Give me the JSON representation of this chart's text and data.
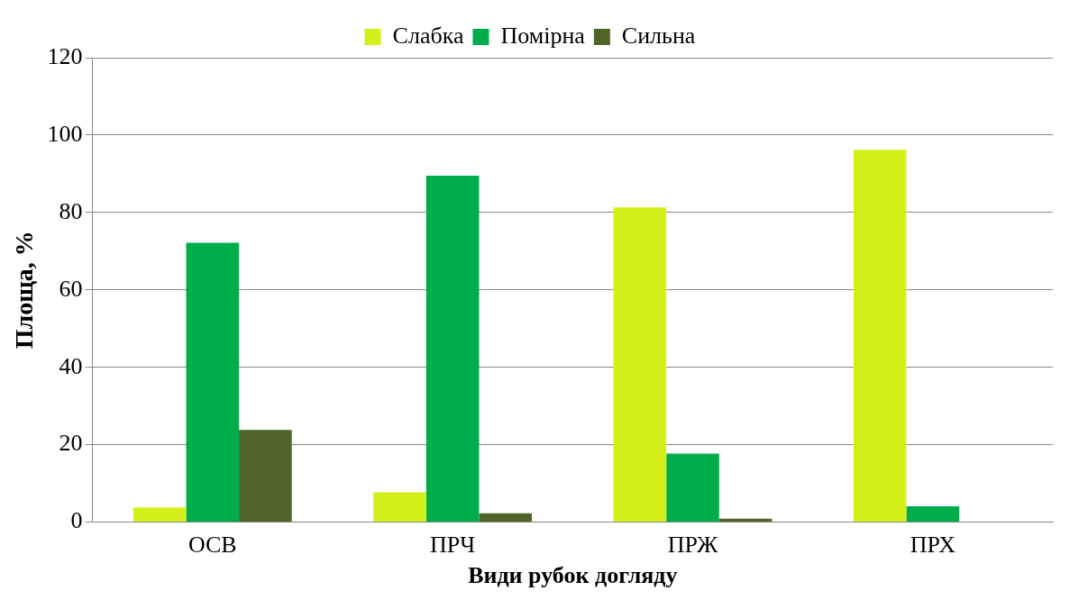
{
  "chart_data": {
    "type": "bar",
    "xlabel": "Види рубок догляду",
    "ylabel": "Площа, %",
    "categories": [
      "ОСВ",
      "ПРЧ",
      "ПРЖ",
      "ПРХ"
    ],
    "series": [
      {
        "name": "Слабка",
        "color": "#d4f01a",
        "values": [
          3.8,
          7.7,
          81.3,
          96.2
        ]
      },
      {
        "name": "Помірна",
        "color": "#00ad4c",
        "values": [
          72.2,
          89.5,
          17.7,
          4.1
        ]
      },
      {
        "name": "Сильна",
        "color": "#51652b",
        "values": [
          23.8,
          2.3,
          0.9,
          null
        ]
      }
    ],
    "ylim": [
      0,
      120
    ],
    "yticks": [
      0,
      20,
      40,
      60,
      80,
      100,
      120
    ],
    "grid": "y",
    "legend": "top"
  }
}
